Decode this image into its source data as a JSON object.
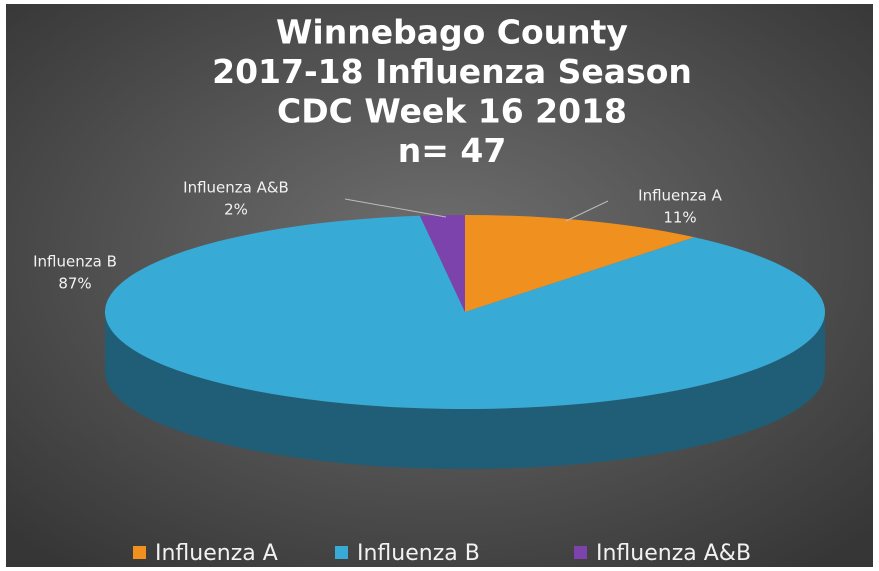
{
  "chart_data": {
    "type": "pie",
    "title": [
      "Winnebago County",
      "2017-18 Influenza Season",
      "CDC Week 16 2018",
      "n= 47"
    ],
    "categories": [
      "Influenza A",
      "Influenza B",
      "Influenza A&B"
    ],
    "values": [
      11,
      87,
      2
    ],
    "value_labels": [
      "11%",
      "87%",
      "2%"
    ],
    "colors": [
      "#f0901e",
      "#38aad6",
      "#7d43ad"
    ],
    "legend": "bottom"
  }
}
